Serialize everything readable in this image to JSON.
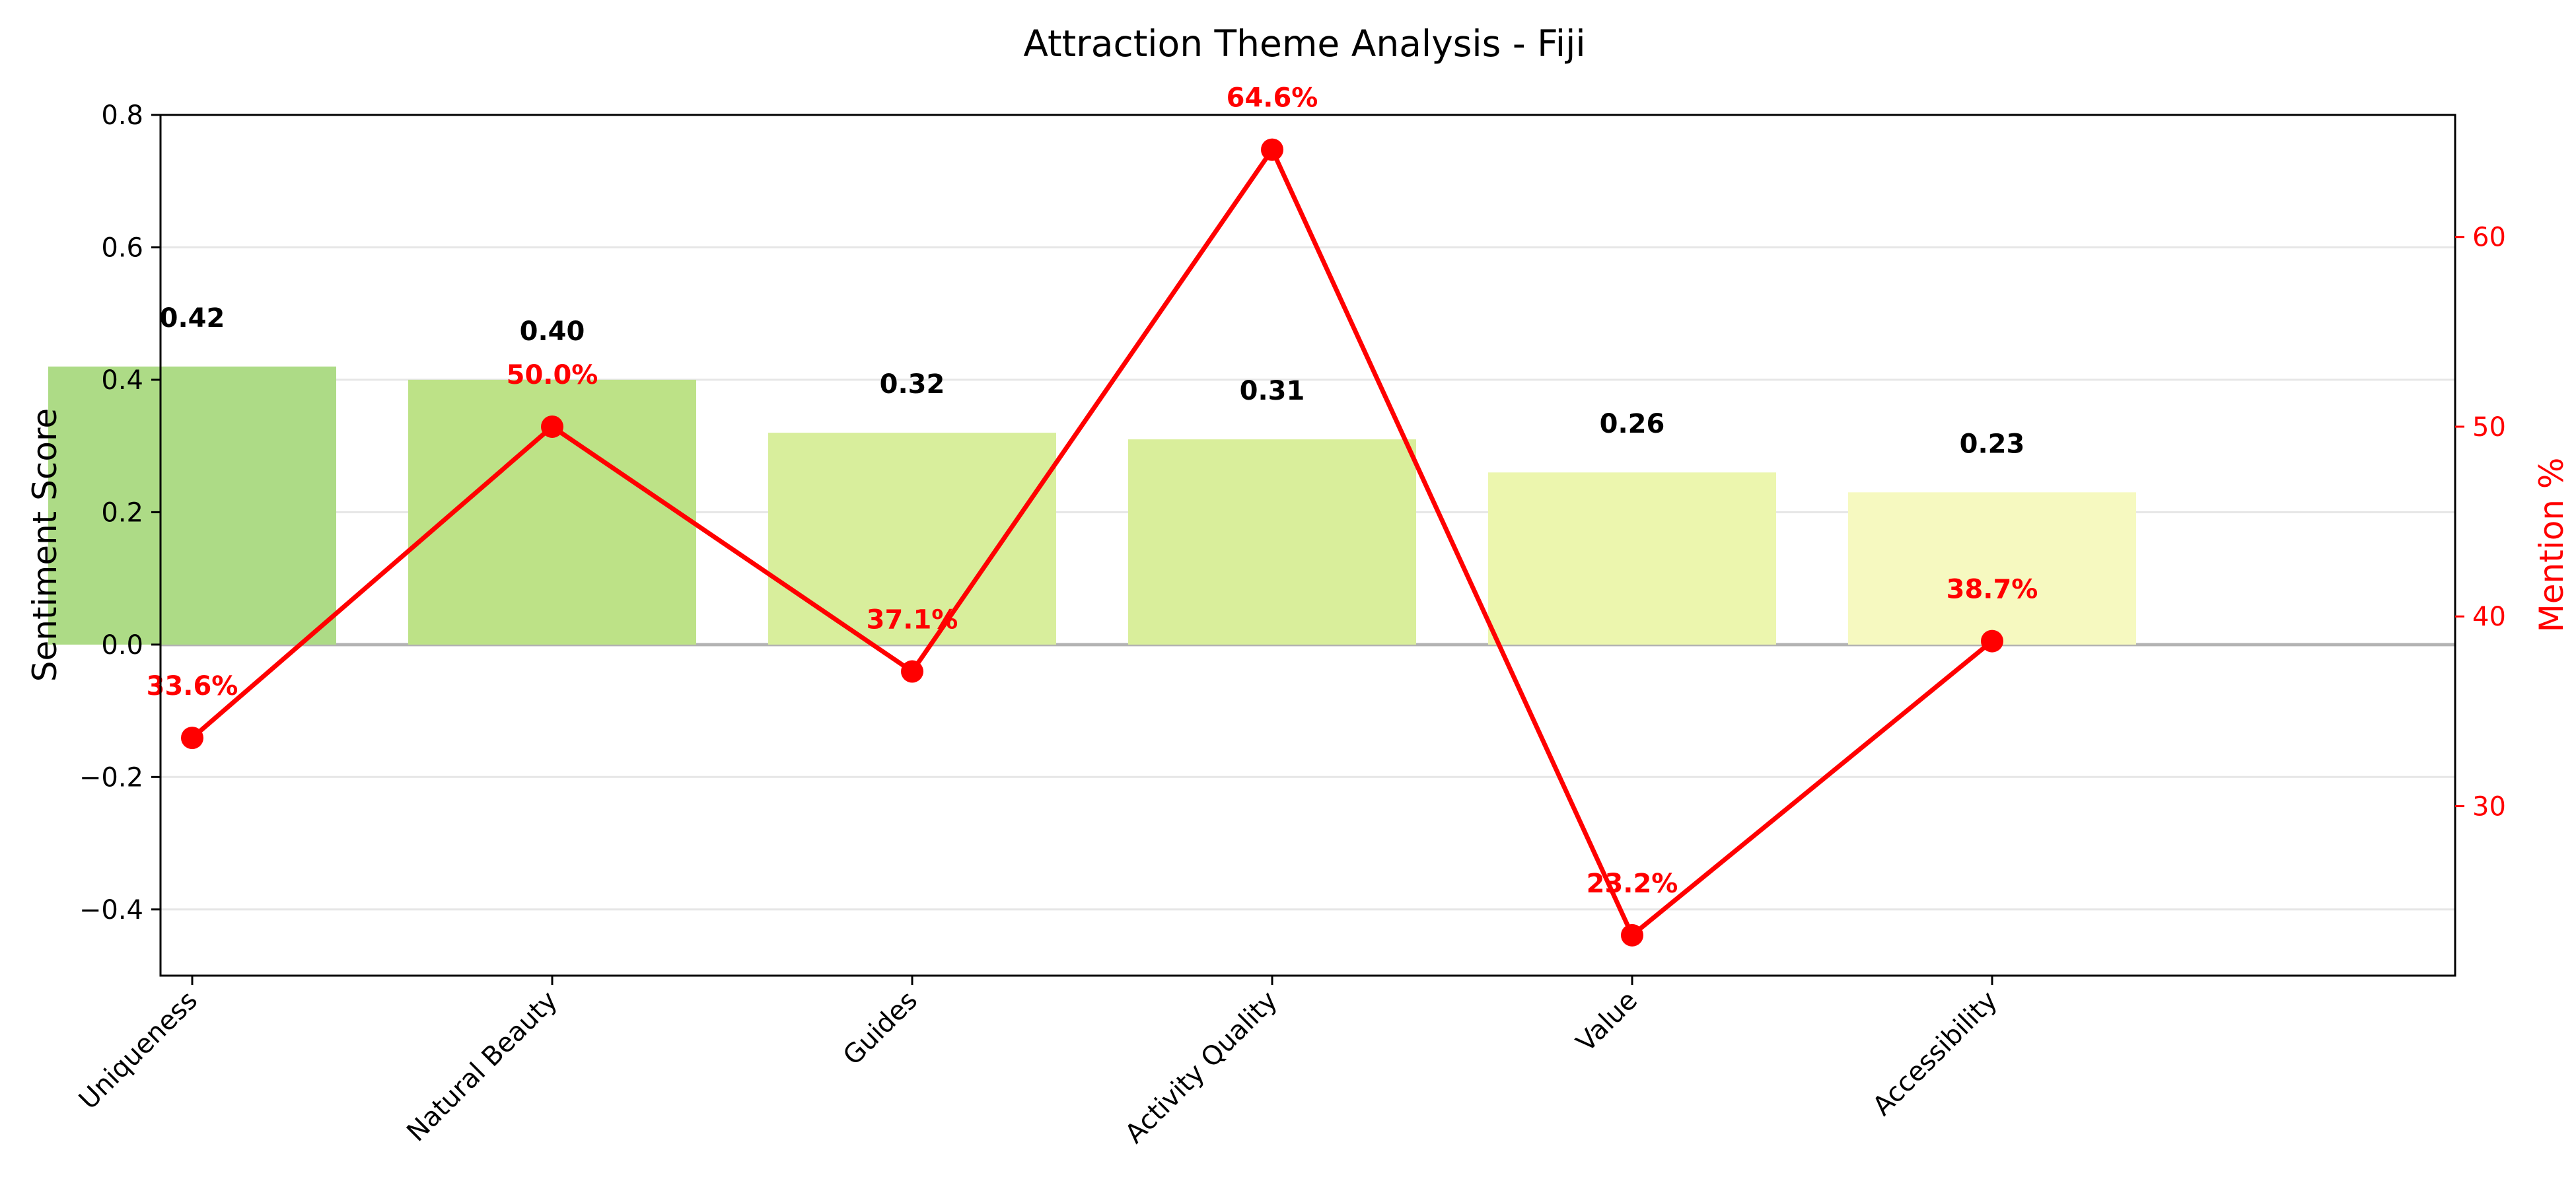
{
  "chart_data": {
    "type": "bar",
    "title": "Attraction Theme Analysis - Fiji",
    "categories": [
      "Uniqueness",
      "Natural Beauty",
      "Guides",
      "Activity Quality",
      "Value",
      "Accessibility"
    ],
    "series": [
      {
        "axis": "left",
        "type": "bar",
        "values": [
          0.42,
          0.4,
          0.32,
          0.31,
          0.26,
          0.23
        ],
        "labels": [
          "0.42",
          "0.40",
          "0.32",
          "0.31",
          "0.26",
          "0.23"
        ],
        "colors": [
          "#addb86",
          "#bde287",
          "#d8ee9c",
          "#d9ee9b",
          "#ecf6ae",
          "#f6f9c0"
        ]
      },
      {
        "axis": "right",
        "type": "line",
        "values": [
          33.6,
          50.0,
          37.1,
          64.6,
          23.2,
          38.7
        ],
        "labels": [
          "33.6%",
          "50.0%",
          "37.1%",
          "64.6%",
          "23.2%",
          "38.7%"
        ],
        "color": "#ff0000"
      }
    ],
    "ylabel": "Sentiment Score",
    "y2label": "Mention %",
    "ylim": [
      -0.5,
      0.8
    ],
    "y2lim": [
      21.07,
      66.43
    ],
    "yticks": [
      0.8,
      0.6,
      0.4,
      0.2,
      0.0,
      -0.2,
      -0.4
    ],
    "ytick_labels": [
      "0.8",
      "0.6",
      "0.4",
      "0.2",
      "0.0",
      "−0.2",
      "−0.4"
    ],
    "y2ticks": [
      60,
      50,
      40,
      30
    ],
    "y2tick_labels": [
      "60",
      "50",
      "40",
      "30"
    ],
    "grid": "horizontal",
    "zero_line": true,
    "legend": "none"
  }
}
